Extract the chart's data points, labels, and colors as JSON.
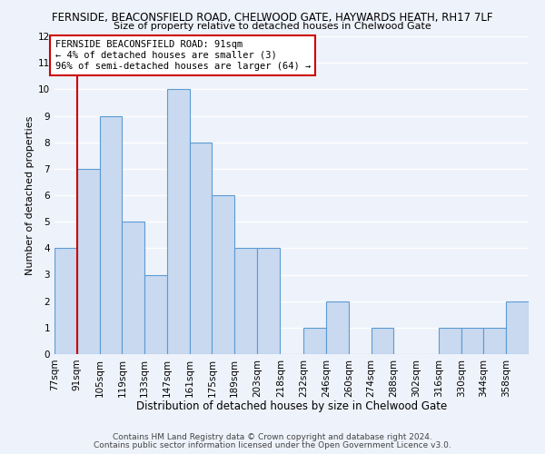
{
  "title": "FERNSIDE, BEACONSFIELD ROAD, CHELWOOD GATE, HAYWARDS HEATH, RH17 7LF",
  "subtitle": "Size of property relative to detached houses in Chelwood Gate",
  "xlabel": "Distribution of detached houses by size in Chelwood Gate",
  "ylabel": "Number of detached properties",
  "bin_labels": [
    "77sqm",
    "91sqm",
    "105sqm",
    "119sqm",
    "133sqm",
    "147sqm",
    "161sqm",
    "175sqm",
    "189sqm",
    "203sqm",
    "218sqm",
    "232sqm",
    "246sqm",
    "260sqm",
    "274sqm",
    "288sqm",
    "302sqm",
    "316sqm",
    "330sqm",
    "344sqm",
    "358sqm"
  ],
  "bin_edges": [
    77,
    91,
    105,
    119,
    133,
    147,
    161,
    175,
    189,
    203,
    218,
    232,
    246,
    260,
    274,
    288,
    302,
    316,
    330,
    344,
    358
  ],
  "counts": [
    4,
    7,
    9,
    5,
    3,
    10,
    8,
    6,
    4,
    4,
    0,
    1,
    2,
    0,
    1,
    0,
    0,
    1,
    1,
    1,
    2
  ],
  "bar_color": "#c9d9f0",
  "bar_edge_color": "#5b9bd5",
  "annotation_title": "FERNSIDE BEACONSFIELD ROAD: 91sqm",
  "annotation_line1": "← 4% of detached houses are smaller (3)",
  "annotation_line2": "96% of semi-detached houses are larger (64) →",
  "annotation_box_color": "#ffffff",
  "annotation_box_edgecolor": "#cc0000",
  "vline_x": 91,
  "vline_color": "#cc0000",
  "ylim": [
    0,
    12
  ],
  "yticks": [
    0,
    1,
    2,
    3,
    4,
    5,
    6,
    7,
    8,
    9,
    10,
    11,
    12
  ],
  "footnote1": "Contains HM Land Registry data © Crown copyright and database right 2024.",
  "footnote2": "Contains public sector information licensed under the Open Government Licence v3.0.",
  "background_color": "#eef2fa",
  "grid_color": "#ffffff",
  "title_fontsize": 8.5,
  "subtitle_fontsize": 8.0,
  "xlabel_fontsize": 8.5,
  "ylabel_fontsize": 8.0,
  "tick_fontsize": 7.5,
  "footnote_fontsize": 6.5
}
